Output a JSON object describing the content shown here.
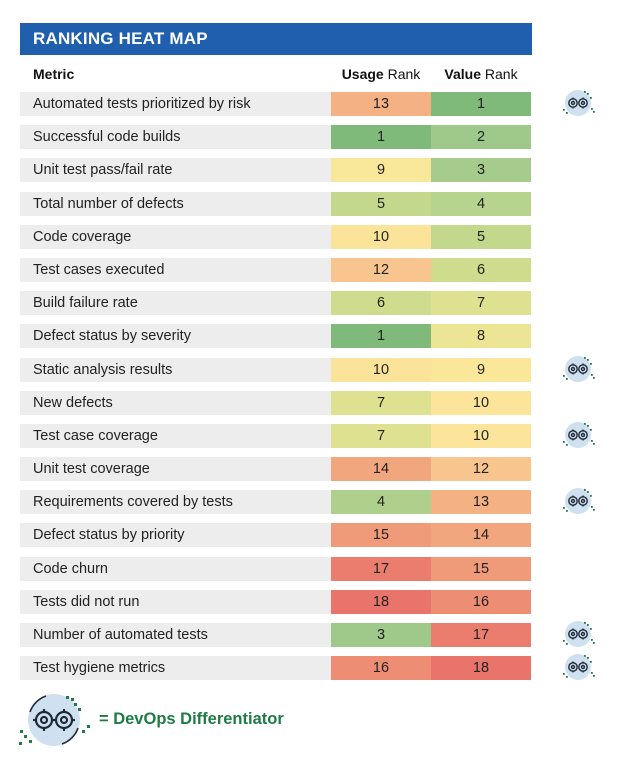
{
  "title": "RANKING HEAT MAP",
  "headers": {
    "metric": "Metric",
    "usage_bold": "Usage",
    "usage_rest": " Rank",
    "value_bold": "Value",
    "value_rest": " Rank"
  },
  "rows": [
    {
      "metric": "Automated tests prioritized by risk",
      "usage": "13",
      "value": "1",
      "usage_color": "#f4b183",
      "value_color": "#7fba7a",
      "devops": true
    },
    {
      "metric": "Successful code builds",
      "usage": "1",
      "value": "2",
      "usage_color": "#7fba7a",
      "value_color": "#9ec98a",
      "devops": false
    },
    {
      "metric": "Unit test pass/fail rate",
      "usage": "9",
      "value": "3",
      "usage_color": "#f9e79a",
      "value_color": "#a5cc8c",
      "devops": false
    },
    {
      "metric": "Total number of defects",
      "usage": "5",
      "value": "4",
      "usage_color": "#c3d88c",
      "value_color": "#b6d48d",
      "devops": false
    },
    {
      "metric": "Code coverage",
      "usage": "10",
      "value": "5",
      "usage_color": "#fbe49a",
      "value_color": "#c3d88c",
      "devops": false
    },
    {
      "metric": "Test cases executed",
      "usage": "12",
      "value": "6",
      "usage_color": "#f8c58e",
      "value_color": "#cfdc8e",
      "devops": false
    },
    {
      "metric": "Build failure rate",
      "usage": "6",
      "value": "7",
      "usage_color": "#cfdc8e",
      "value_color": "#dde190",
      "devops": false
    },
    {
      "metric": "Defect status by severity",
      "usage": "1",
      "value": "8",
      "usage_color": "#7fba7a",
      "value_color": "#ebe594",
      "devops": false
    },
    {
      "metric": "Static analysis results",
      "usage": "10",
      "value": "9",
      "usage_color": "#fbe49a",
      "value_color": "#fbe79a",
      "devops": true
    },
    {
      "metric": "New defects",
      "usage": "7",
      "value": "10",
      "usage_color": "#dde190",
      "value_color": "#fce49a",
      "devops": false
    },
    {
      "metric": "Test case coverage",
      "usage": "7",
      "value": "10",
      "usage_color": "#dde190",
      "value_color": "#fce49a",
      "devops": true
    },
    {
      "metric": "Unit test coverage",
      "usage": "14",
      "value": "12",
      "usage_color": "#f2a67d",
      "value_color": "#f8c58e",
      "devops": false
    },
    {
      "metric": "Requirements covered by tests",
      "usage": "4",
      "value": "13",
      "usage_color": "#aed08c",
      "value_color": "#f4b183",
      "devops": true
    },
    {
      "metric": "Defect status by priority",
      "usage": "15",
      "value": "14",
      "usage_color": "#ef9a78",
      "value_color": "#f2a67d",
      "devops": false
    },
    {
      "metric": "Code churn",
      "usage": "17",
      "value": "15",
      "usage_color": "#ea7d6e",
      "value_color": "#ef9a78",
      "devops": false
    },
    {
      "metric": "Tests did not run",
      "usage": "18",
      "value": "16",
      "usage_color": "#e8746b",
      "value_color": "#ec8d74",
      "devops": false
    },
    {
      "metric": "Number of automated tests",
      "usage": "3",
      "value": "17",
      "usage_color": "#9ec98a",
      "value_color": "#ea7d6e",
      "devops": true
    },
    {
      "metric": "Test hygiene metrics",
      "usage": "16",
      "value": "18",
      "usage_color": "#ec8d74",
      "value_color": "#e8746b",
      "devops": true
    }
  ],
  "legend": {
    "text": "= DevOps Differentiator"
  },
  "colors": {
    "title_bg": "#1f5fad",
    "row_bg": "#ededed",
    "legend_text": "#1e7b45",
    "badge_circle": "#cfe0f1",
    "badge_dots": "#1e7b45"
  },
  "icons": {
    "devops": "devops-gears-icon"
  }
}
